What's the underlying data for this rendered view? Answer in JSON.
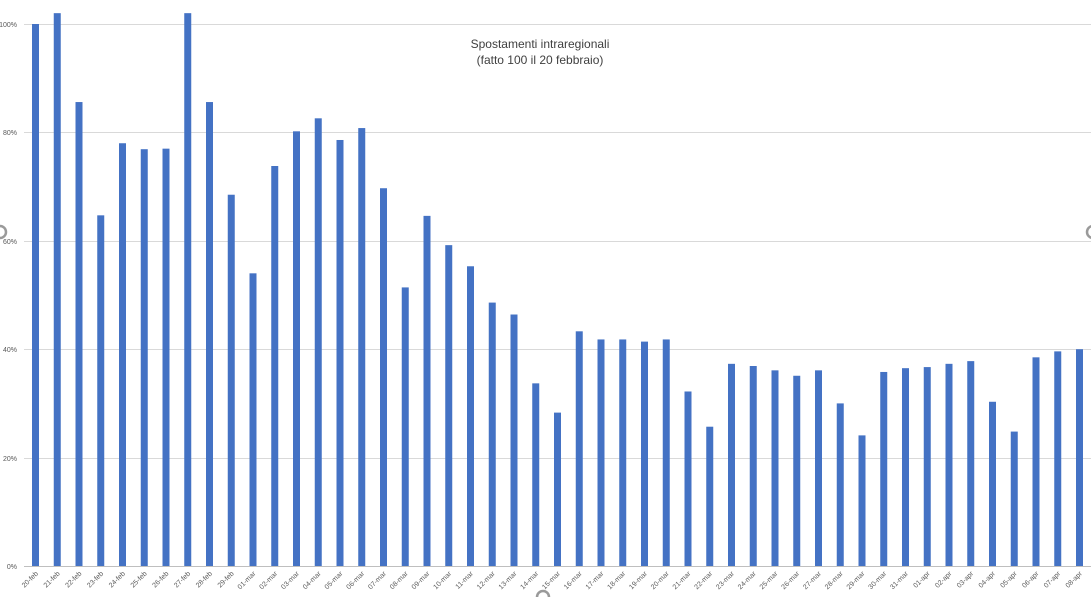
{
  "chart_data": {
    "type": "bar",
    "title_lines": [
      "Spostamenti intraregionali",
      "(fatto 100 il 20 febbraio)"
    ],
    "xlabel": "",
    "ylabel": "",
    "ylim": [
      0,
      1.0
    ],
    "yticks": [
      {
        "value": 0,
        "label": "0%"
      },
      {
        "value": 0.2,
        "label": "20%"
      },
      {
        "value": 0.4,
        "label": "40%"
      },
      {
        "value": 0.6,
        "label": "60%"
      },
      {
        "value": 0.8,
        "label": "80%"
      },
      {
        "value": 1.0,
        "label": "100%"
      }
    ],
    "grid": true,
    "legend": "none",
    "bar_color": "#4472c4",
    "categories": [
      "20-feb",
      "21-feb",
      "22-feb",
      "23-feb",
      "24-feb",
      "25-feb",
      "26-feb",
      "27-feb",
      "28-feb",
      "29-feb",
      "01-mar",
      "02-mar",
      "03-mar",
      "04-mar",
      "05-mar",
      "06-mar",
      "07-mar",
      "08-mar",
      "09-mar",
      "10-mar",
      "11-mar",
      "12-mar",
      "13-mar",
      "14-mar",
      "15-mar",
      "16-mar",
      "17-mar",
      "18-mar",
      "19-mar",
      "20-mar",
      "21-mar",
      "22-mar",
      "23-mar",
      "24-mar",
      "25-mar",
      "26-mar",
      "27-mar",
      "28-mar",
      "29-mar",
      "30-mar",
      "31-mar",
      "01-apr",
      "02-apr",
      "03-apr",
      "04-apr",
      "05-apr",
      "06-apr",
      "07-apr",
      "08-apr"
    ],
    "values": [
      1.0,
      1.02,
      0.856,
      0.647,
      0.78,
      0.769,
      0.77,
      1.02,
      0.856,
      0.685,
      0.54,
      0.738,
      0.802,
      0.826,
      0.786,
      0.808,
      0.697,
      0.514,
      0.646,
      0.592,
      0.553,
      0.486,
      0.464,
      0.337,
      0.283,
      0.433,
      0.418,
      0.418,
      0.414,
      0.418,
      0.322,
      0.257,
      0.373,
      0.369,
      0.361,
      0.351,
      0.361,
      0.3,
      0.241,
      0.358,
      0.365,
      0.367,
      0.373,
      0.378,
      0.303,
      0.248,
      0.385,
      0.396,
      0.4
    ]
  }
}
